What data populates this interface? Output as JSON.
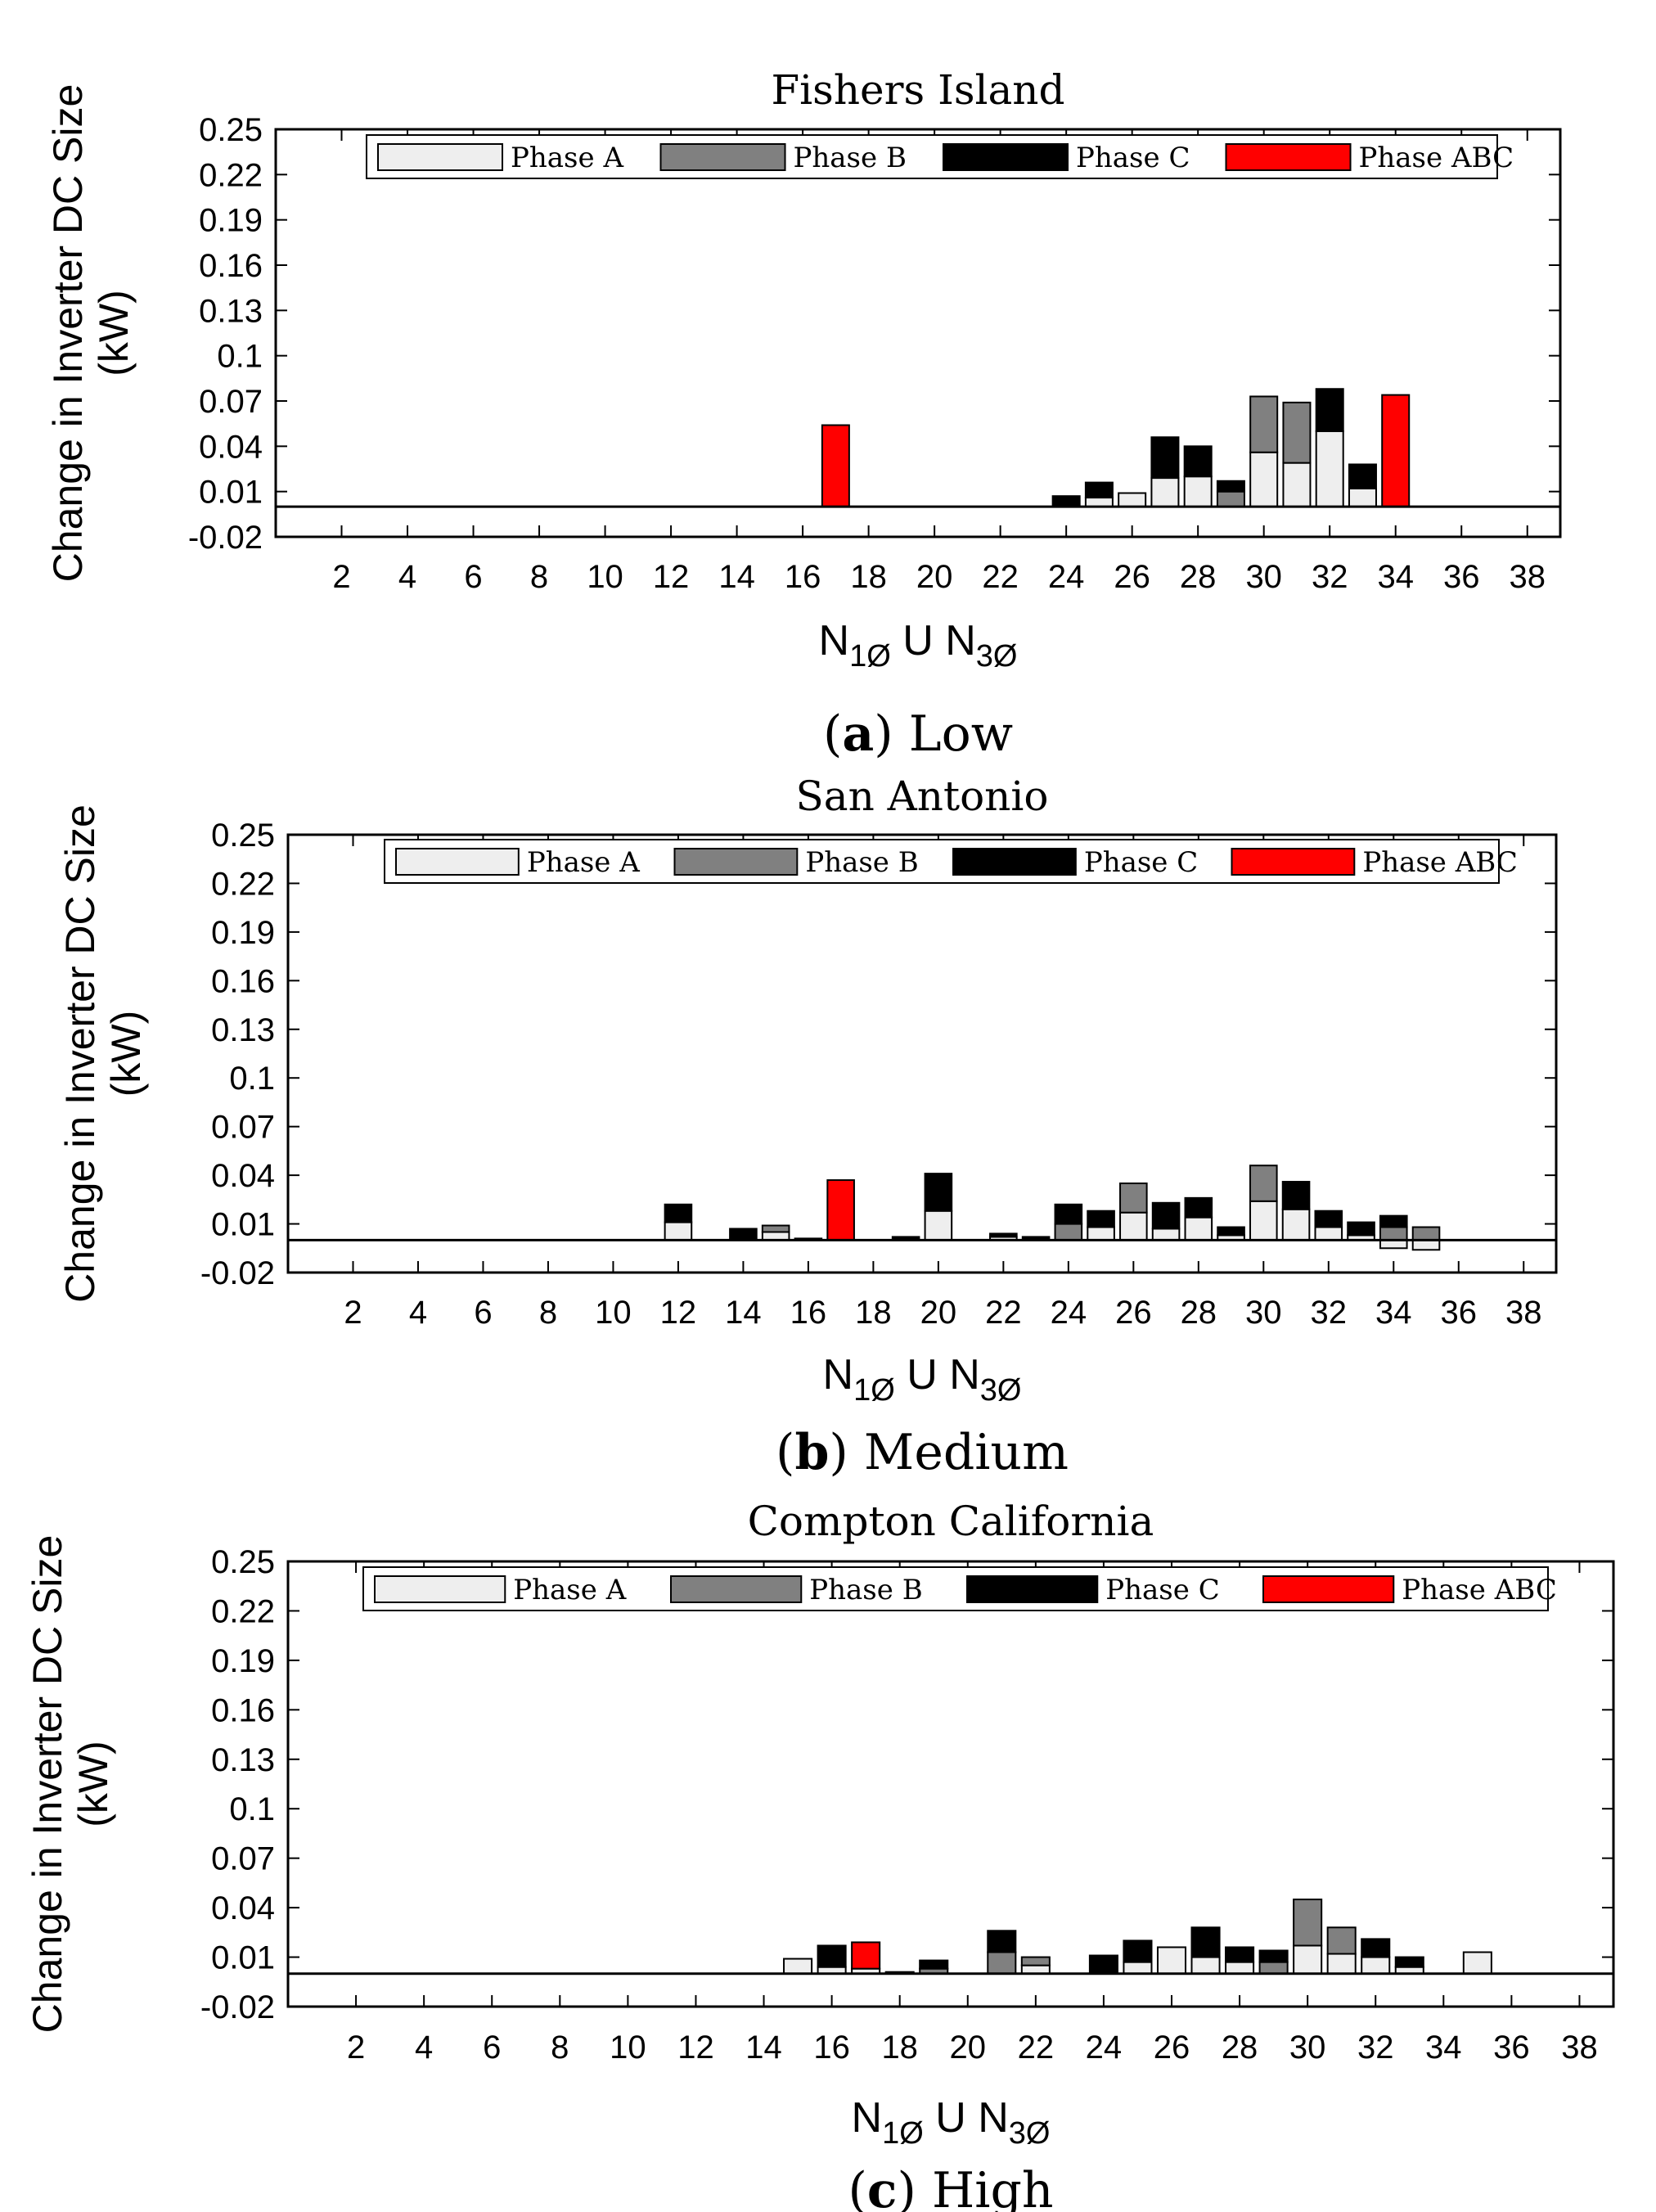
{
  "colors": {
    "phase_a": "#eeeeee",
    "phase_b": "#808080",
    "phase_c": "#000000",
    "phase_abc": "#ff0000"
  },
  "chart_data": [
    {
      "type": "bar",
      "title": "Fishers Island",
      "caption_letter": "a",
      "caption_text": "Low",
      "ylabel": "Change in Inverter DC Size (kW)",
      "ylabel_line1": "Change in Inverter DC Size",
      "ylabel_line2": "(kW)",
      "xlabel": {
        "main1": "N",
        "sub1": "1Ø",
        "mid": " U ",
        "main2": "N",
        "sub2": "3Ø"
      },
      "ylim": [
        -0.02,
        0.25
      ],
      "xlim": [
        0,
        39
      ],
      "yticks": [
        "0.25",
        "0.22",
        "0.19",
        "0.16",
        "0.13",
        "0.1",
        "0.07",
        "0.04",
        "0.01",
        "-0.02"
      ],
      "xticks": [
        "2",
        "4",
        "6",
        "8",
        "10",
        "12",
        "14",
        "16",
        "18",
        "20",
        "22",
        "24",
        "26",
        "28",
        "30",
        "32",
        "34",
        "36",
        "38"
      ],
      "legend": [
        "Phase A",
        "Phase B",
        "Phase C",
        "Phase ABC"
      ],
      "stacks": [
        {
          "x": 17,
          "abc": 0.054
        },
        {
          "x": 24,
          "a": 0.0,
          "b": 0.0,
          "c": 0.007
        },
        {
          "x": 25,
          "a": 0.006,
          "b": 0.0,
          "c": 0.01
        },
        {
          "x": 26,
          "a": 0.009
        },
        {
          "x": 27,
          "a": 0.019,
          "b": 0.0,
          "c": 0.027
        },
        {
          "x": 28,
          "a": 0.02,
          "b": 0.0,
          "c": 0.02
        },
        {
          "x": 29,
          "a": 0.0,
          "b": 0.01,
          "c": 0.007
        },
        {
          "x": 30,
          "a": 0.036,
          "b": 0.037,
          "c": 0.0
        },
        {
          "x": 31,
          "a": 0.029,
          "b": 0.04,
          "c": 0.0
        },
        {
          "x": 32,
          "a": 0.05,
          "b": 0.0,
          "c": 0.028
        },
        {
          "x": 33,
          "a": 0.012,
          "b": 0.0,
          "c": 0.016
        },
        {
          "x": 34,
          "abc": 0.074
        }
      ]
    },
    {
      "type": "bar",
      "title": "San Antonio",
      "caption_letter": "b",
      "caption_text": "Medium",
      "ylabel": "Change in Inverter DC Size (kW)",
      "ylabel_line1": "Change in Inverter DC Size",
      "ylabel_line2": "(kW)",
      "xlabel": {
        "main1": "N",
        "sub1": "1Ø",
        "mid": " U ",
        "main2": "N",
        "sub2": "3Ø"
      },
      "ylim": [
        -0.02,
        0.25
      ],
      "xlim": [
        0,
        39
      ],
      "yticks": [
        "0.25",
        "0.22",
        "0.19",
        "0.16",
        "0.13",
        "0.1",
        "0.07",
        "0.04",
        "0.01",
        "-0.02"
      ],
      "xticks": [
        "2",
        "4",
        "6",
        "8",
        "10",
        "12",
        "14",
        "16",
        "18",
        "20",
        "22",
        "24",
        "26",
        "28",
        "30",
        "32",
        "34",
        "36",
        "38"
      ],
      "legend": [
        "Phase A",
        "Phase B",
        "Phase C",
        "Phase ABC"
      ],
      "stacks": [
        {
          "x": 12,
          "a": 0.011,
          "b": 0.0,
          "c": 0.011
        },
        {
          "x": 14,
          "a": 0.0,
          "b": 0.0,
          "c": 0.007
        },
        {
          "x": 15,
          "a": 0.005,
          "b": 0.004,
          "c": 0.0
        },
        {
          "x": 16,
          "a": 0.0,
          "b": 0.0,
          "c": 0.001
        },
        {
          "x": 17,
          "abc": 0.037
        },
        {
          "x": 19,
          "a": 0.0,
          "b": 0.0,
          "c": 0.002
        },
        {
          "x": 20,
          "a": 0.018,
          "b": 0.0,
          "c": 0.023
        },
        {
          "x": 22,
          "a": 0.002,
          "b": 0.0,
          "c": 0.002
        },
        {
          "x": 23,
          "a": 0.0,
          "b": 0.0,
          "c": 0.002
        },
        {
          "x": 24,
          "a": 0.0,
          "b": 0.01,
          "c": 0.012
        },
        {
          "x": 25,
          "a": 0.008,
          "b": 0.0,
          "c": 0.01
        },
        {
          "x": 26,
          "a": 0.017,
          "b": 0.018,
          "c": 0.0
        },
        {
          "x": 27,
          "a": 0.007,
          "b": 0.0,
          "c": 0.016
        },
        {
          "x": 28,
          "a": 0.014,
          "b": 0.0,
          "c": 0.012
        },
        {
          "x": 29,
          "a": 0.003,
          "b": 0.0,
          "c": 0.005
        },
        {
          "x": 30,
          "a": 0.024,
          "b": 0.022,
          "c": 0.0
        },
        {
          "x": 31,
          "a": 0.019,
          "b": 0.0,
          "c": 0.017
        },
        {
          "x": 32,
          "a": 0.008,
          "b": 0.0,
          "c": 0.01
        },
        {
          "x": 33,
          "a": 0.003,
          "b": 0.0,
          "c": 0.008
        },
        {
          "x": 34,
          "a": -0.005,
          "b": 0.008,
          "c": 0.007
        },
        {
          "x": 35,
          "a": -0.006,
          "b": 0.008,
          "c": 0.0
        }
      ]
    },
    {
      "type": "bar",
      "title": "Compton California",
      "caption_letter": "c",
      "caption_text": "High",
      "ylabel": "Change in Inverter DC Size (kW)",
      "ylabel_line1": "Change in Inverter DC Size",
      "ylabel_line2": "(kW)",
      "xlabel": {
        "main1": "N",
        "sub1": "1Ø",
        "mid": " U ",
        "main2": "N",
        "sub2": "3Ø"
      },
      "ylim": [
        -0.02,
        0.25
      ],
      "xlim": [
        0,
        39
      ],
      "yticks": [
        "0.25",
        "0.22",
        "0.19",
        "0.16",
        "0.13",
        "0.1",
        "0.07",
        "0.04",
        "0.01",
        "-0.02"
      ],
      "xticks": [
        "2",
        "4",
        "6",
        "8",
        "10",
        "12",
        "14",
        "16",
        "18",
        "20",
        "22",
        "24",
        "26",
        "28",
        "30",
        "32",
        "34",
        "36",
        "38"
      ],
      "legend": [
        "Phase A",
        "Phase B",
        "Phase C",
        "Phase ABC"
      ],
      "stacks": [
        {
          "x": 15,
          "a": 0.009
        },
        {
          "x": 16,
          "a": 0.004,
          "b": 0.0,
          "c": 0.013
        },
        {
          "x": 17,
          "a": 0.003,
          "b": 0.0,
          "c": 0.0,
          "abc": 0.016
        },
        {
          "x": 18,
          "a": 0.0,
          "b": 0.0,
          "c": 0.001
        },
        {
          "x": 19,
          "a": 0.0,
          "b": 0.003,
          "c": 0.005
        },
        {
          "x": 21,
          "a": 0.0,
          "b": 0.013,
          "c": 0.013
        },
        {
          "x": 22,
          "a": 0.005,
          "b": 0.005,
          "c": 0.0
        },
        {
          "x": 24,
          "a": 0.0,
          "b": 0.0,
          "c": 0.011
        },
        {
          "x": 25,
          "a": 0.007,
          "b": 0.0,
          "c": 0.013
        },
        {
          "x": 26,
          "a": 0.016
        },
        {
          "x": 27,
          "a": 0.01,
          "b": 0.0,
          "c": 0.018
        },
        {
          "x": 28,
          "a": 0.007,
          "b": 0.0,
          "c": 0.009
        },
        {
          "x": 29,
          "a": 0.0,
          "b": 0.007,
          "c": 0.007
        },
        {
          "x": 30,
          "a": 0.017,
          "b": 0.028,
          "c": 0.0
        },
        {
          "x": 31,
          "a": 0.012,
          "b": 0.016,
          "c": 0.0
        },
        {
          "x": 32,
          "a": 0.01,
          "b": 0.0,
          "c": 0.011
        },
        {
          "x": 33,
          "a": 0.004,
          "b": 0.0,
          "c": 0.006
        },
        {
          "x": 35,
          "a": 0.013
        }
      ]
    }
  ]
}
